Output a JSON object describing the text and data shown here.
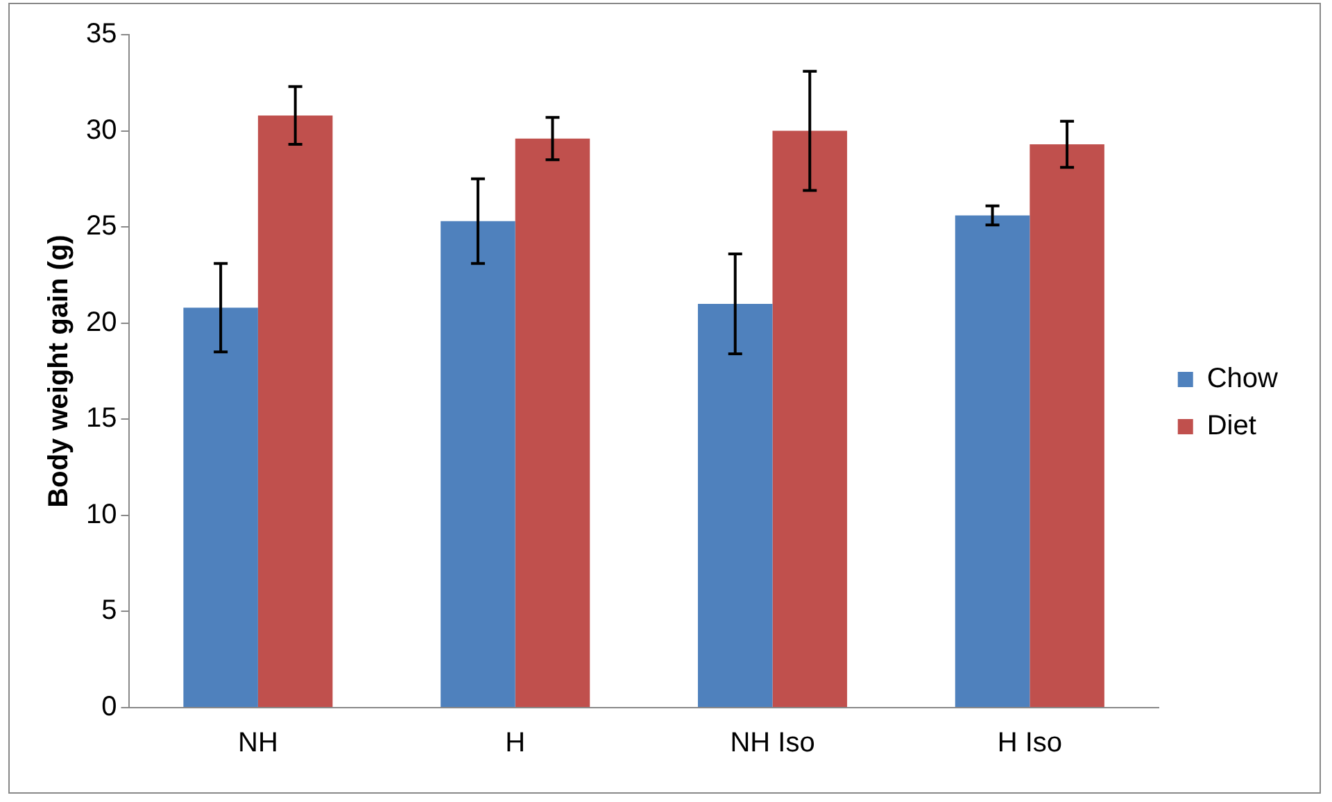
{
  "chart_data": {
    "type": "bar",
    "ylabel": "Body weight gain (g)",
    "categories": [
      "NH",
      "H",
      "NH Iso",
      "H Iso"
    ],
    "series": [
      {
        "name": "Chow",
        "color": "#4f81bd",
        "values": [
          20.8,
          25.3,
          21.0,
          25.6
        ],
        "errors": [
          2.3,
          2.2,
          2.6,
          0.5
        ]
      },
      {
        "name": "Diet",
        "color": "#c0504d",
        "values": [
          30.8,
          29.6,
          30.0,
          29.3
        ],
        "errors": [
          1.5,
          1.1,
          3.1,
          1.2
        ]
      }
    ],
    "ylim": [
      0,
      35
    ],
    "yticks": [
      0,
      5,
      10,
      15,
      20,
      25,
      30,
      35
    ],
    "grid": false,
    "legend": "right"
  }
}
